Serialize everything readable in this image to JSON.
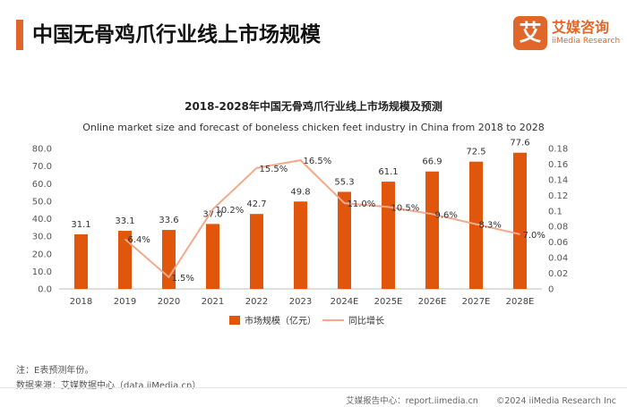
{
  "page_title": "中国无骨鸡爪行业线上市场规模",
  "logo": {
    "glyph": "艾",
    "name_cn": "艾媒咨询",
    "name_en": "iiMedia Research"
  },
  "colors": {
    "accent": "#e0662a",
    "bar": "#e0560d",
    "line": "#f3a98a"
  },
  "chart_data": {
    "type": "bar",
    "title": "2018-2028年中国无骨鸡爪行业线上市场规模及预测",
    "subtitle": "Online market size and forecast of boneless chicken feet industry in China from 2018 to 2028",
    "categories": [
      "2018",
      "2019",
      "2020",
      "2021",
      "2022",
      "2023",
      "2024E",
      "2025E",
      "2026E",
      "2027E",
      "2028E"
    ],
    "series": [
      {
        "name": "市场规模（亿元）",
        "type": "bar",
        "axis": "left",
        "values": [
          31.1,
          33.1,
          33.6,
          37.0,
          42.7,
          49.8,
          55.3,
          61.1,
          66.9,
          72.5,
          77.6
        ],
        "labels": [
          "31.1",
          "33.1",
          "33.6",
          "37.0",
          "42.7",
          "49.8",
          "55.3",
          "61.1",
          "66.9",
          "72.5",
          "77.6"
        ]
      },
      {
        "name": "同比增长",
        "type": "line",
        "axis": "right",
        "values": [
          null,
          0.064,
          0.015,
          0.102,
          0.155,
          0.165,
          0.11,
          0.105,
          0.096,
          0.083,
          0.07
        ],
        "labels": [
          null,
          "6.4%",
          "1.5%",
          "10.2%",
          "15.5%",
          "16.5%",
          "11.0%",
          "10.5%",
          "9.6%",
          "8.3%",
          "7.0%"
        ]
      }
    ],
    "ylim": [
      0,
      80
    ],
    "y_ticks": [
      "0.0",
      "10.0",
      "20.0",
      "30.0",
      "40.0",
      "50.0",
      "60.0",
      "70.0",
      "80.0"
    ],
    "y2lim": [
      0,
      0.18
    ],
    "y2_ticks": [
      "0",
      "0.02",
      "0.04",
      "0.06",
      "0.08",
      "0.1",
      "0.12",
      "0.14",
      "0.16",
      "0.18"
    ],
    "legend_position": "bottom"
  },
  "notes": {
    "note": "注：E表预测年份。",
    "source": "数据来源：艾媒数据中心（data.iiMedia.cn）"
  },
  "footer": {
    "report": "艾媒报告中心：report.iimedia.cn",
    "copyright": "©2024  iiMedia Research  Inc"
  }
}
